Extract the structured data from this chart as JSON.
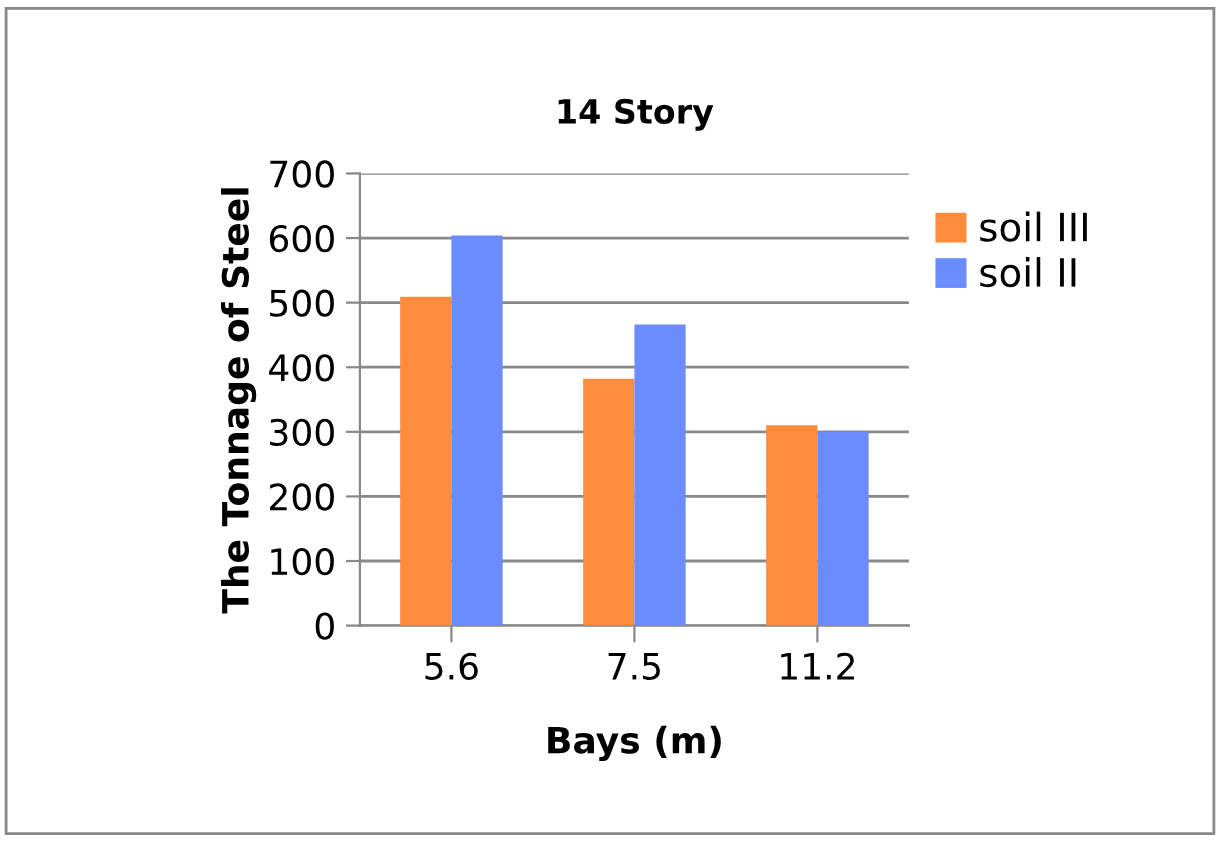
{
  "chart_data": {
    "type": "bar",
    "title": "14 Story",
    "xlabel": "Bays (m)",
    "ylabel": "The Tonnage of Steel",
    "categories": [
      "5.6",
      "7.5",
      "11.2"
    ],
    "series": [
      {
        "name": "soil III",
        "color": "#ff8c3c",
        "values": [
          509,
          382,
          310
        ]
      },
      {
        "name": "soil II",
        "color": "#6a8cff",
        "values": [
          604,
          466,
          300
        ]
      }
    ],
    "ylim": [
      0,
      700
    ],
    "yticks": [
      0,
      100,
      200,
      300,
      400,
      500,
      600,
      700
    ],
    "grid": "y",
    "legend": "top right"
  }
}
